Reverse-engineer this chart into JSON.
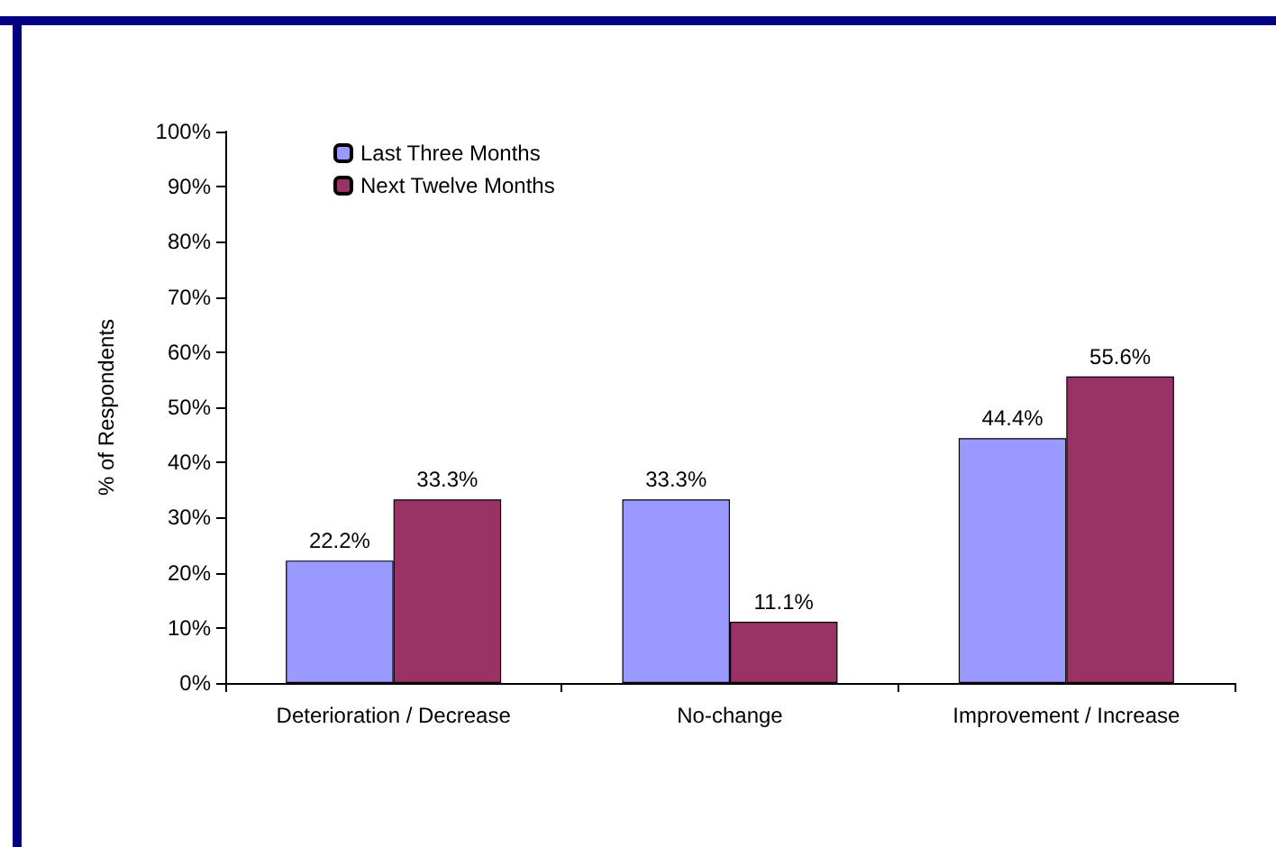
{
  "chart_data": {
    "type": "bar",
    "ylabel": "% of Respondents",
    "categories": [
      "Deterioration / Decrease",
      "No-change",
      "Improvement / Increase"
    ],
    "series": [
      {
        "name": "Last Three Months",
        "color": "#9999ff",
        "values": [
          22.2,
          33.3,
          44.4
        ],
        "value_labels": [
          "22.2%",
          "33.3%",
          "44.4%"
        ]
      },
      {
        "name": "Next Twelve Months",
        "color": "#993366",
        "values": [
          33.3,
          11.1,
          55.6
        ],
        "value_labels": [
          "33.3%",
          "11.1%",
          "55.6%"
        ]
      }
    ],
    "ylim": [
      0,
      100
    ],
    "yticks": [
      {
        "value": 0,
        "label": "0%"
      },
      {
        "value": 10,
        "label": "10%"
      },
      {
        "value": 20,
        "label": "20%"
      },
      {
        "value": 30,
        "label": "30%"
      },
      {
        "value": 40,
        "label": "40%"
      },
      {
        "value": 50,
        "label": "50%"
      },
      {
        "value": 60,
        "label": "60%"
      },
      {
        "value": 70,
        "label": "70%"
      },
      {
        "value": 80,
        "label": "80%"
      },
      {
        "value": 90,
        "label": "90%"
      },
      {
        "value": 100,
        "label": "100%"
      }
    ],
    "grid": false,
    "legend": "top left"
  }
}
